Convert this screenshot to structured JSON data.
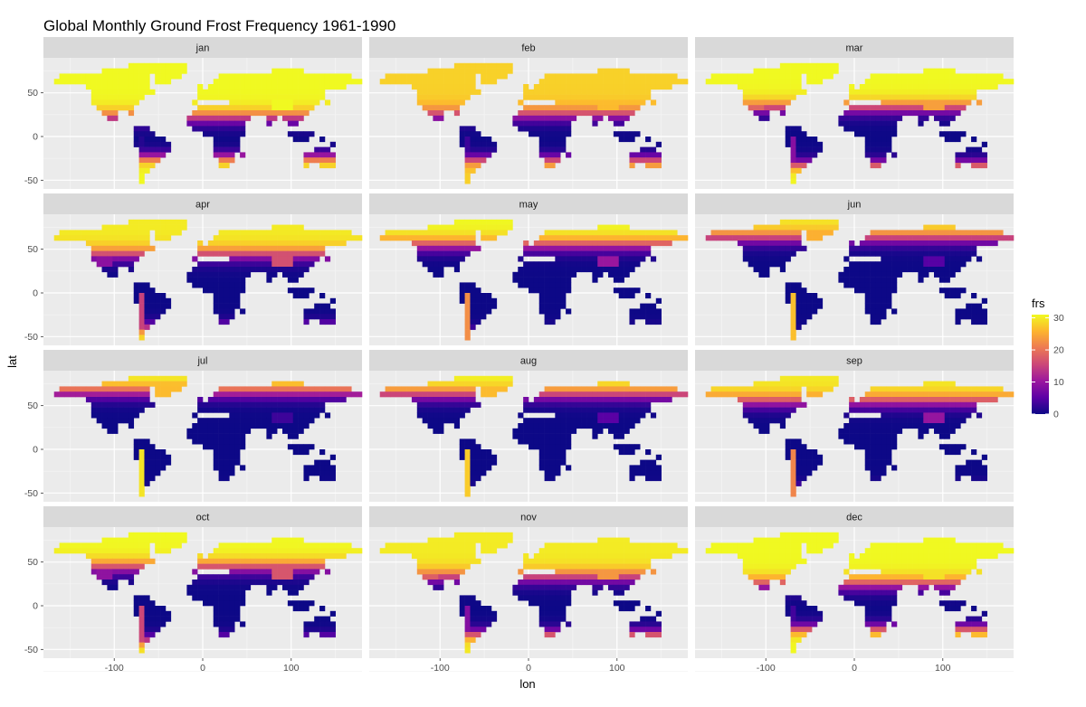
{
  "chart_data": {
    "type": "heatmap",
    "title": "Global Monthly Ground Frost Frequency 1961-1990",
    "xlabel": "lon",
    "ylabel": "lat",
    "facets": [
      "jan",
      "feb",
      "mar",
      "apr",
      "may",
      "jun",
      "jul",
      "aug",
      "sep",
      "oct",
      "nov",
      "dec"
    ],
    "x_ticks": [
      -100,
      0,
      100
    ],
    "y_ticks": [
      -50,
      0,
      50
    ],
    "xlim": [
      -180,
      180
    ],
    "ylim": [
      -60,
      90
    ],
    "legend": {
      "title": "frs",
      "ticks": [
        0,
        10,
        20,
        30
      ],
      "range": [
        0,
        31
      ],
      "placement": "right",
      "colormap": "plasma"
    },
    "colors": {
      "panel_bg": "#ebebeb",
      "strip_bg": "#d9d9d9",
      "grid_major": "#ffffff",
      "cmap_stops": [
        "#0d0887",
        "#5d01a6",
        "#9c179e",
        "#cc4778",
        "#ed7953",
        "#fdb42f",
        "#f0f921"
      ]
    },
    "grid": true
  }
}
